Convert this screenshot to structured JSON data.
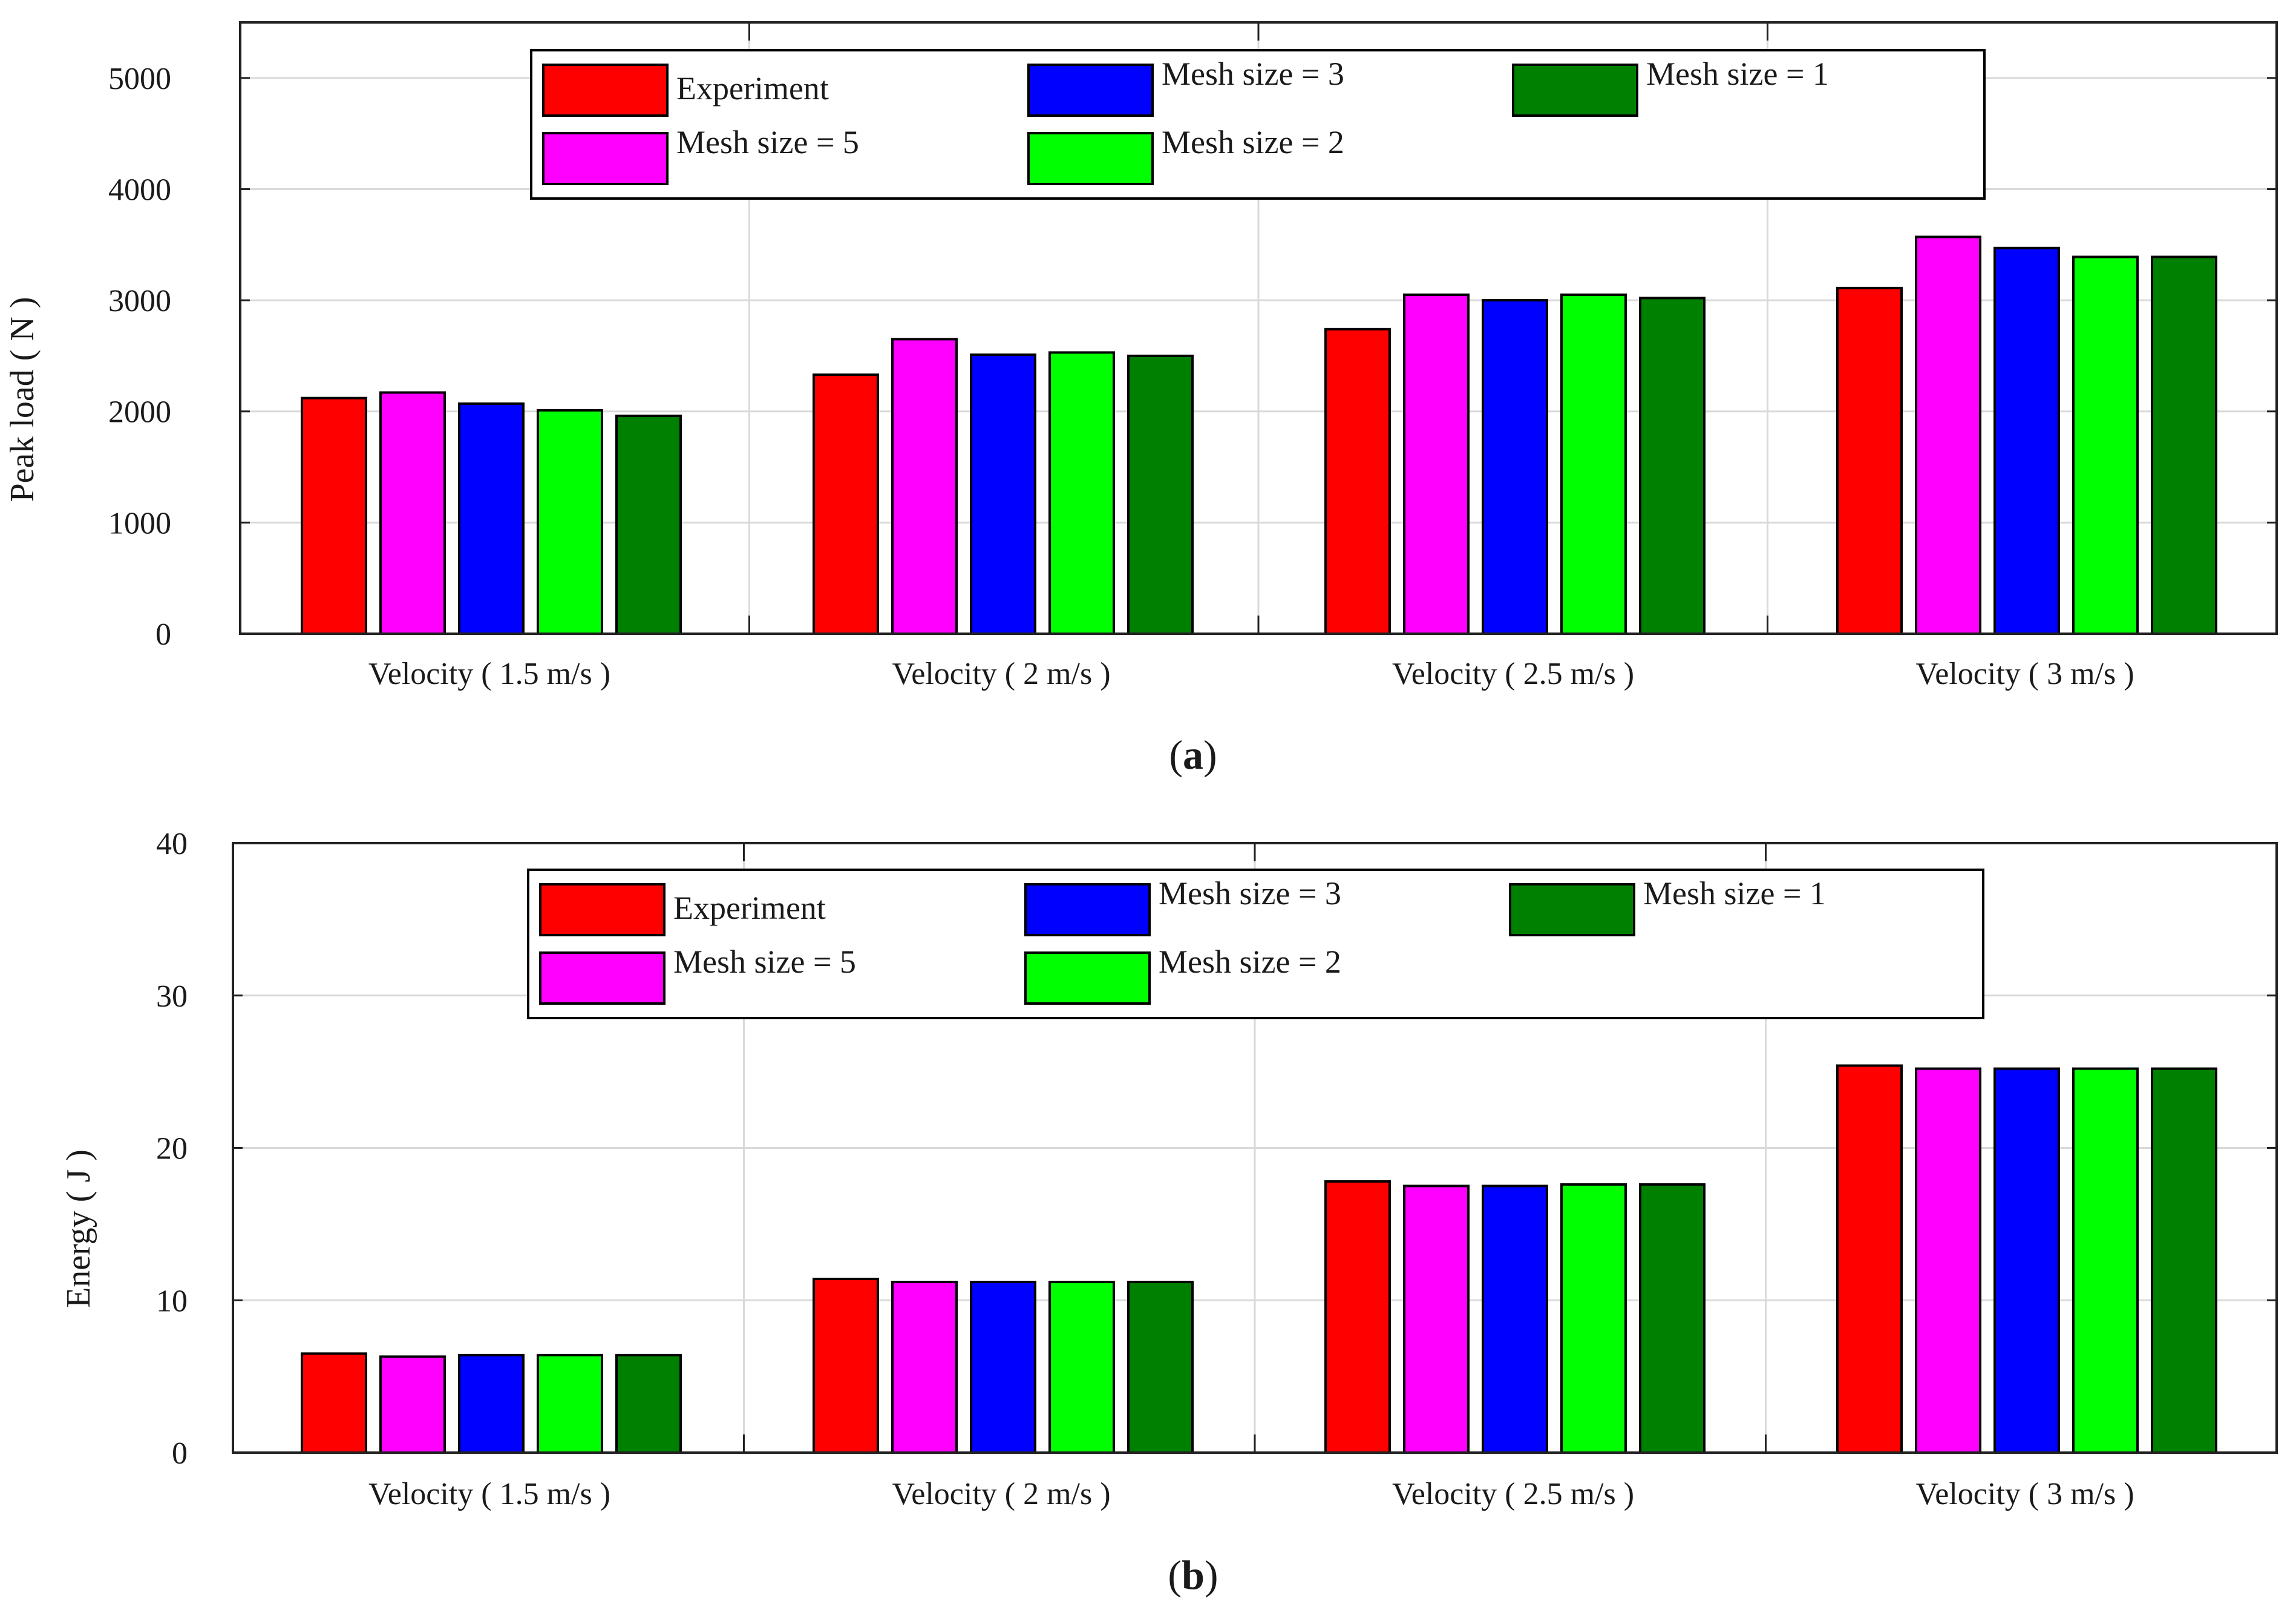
{
  "colors": {
    "Experiment": "#ff0000",
    "Mesh size = 5": "#ff00ff",
    "Mesh size = 3": "#0000ff",
    "Mesh size = 2": "#00ff00",
    "Mesh size = 1": "#008000"
  },
  "legend_order": [
    "Experiment",
    "Mesh size = 3",
    "Mesh size = 1",
    "Mesh size = 5",
    "Mesh size = 2"
  ],
  "chart_data": [
    {
      "type": "bar",
      "caption_letter": "a",
      "ylabel": "Peak load ( N )",
      "xlabel": "",
      "ylim": [
        0,
        5500
      ],
      "yticks": [
        "0",
        "1000",
        "2000",
        "3000",
        "4000",
        "5000"
      ],
      "ytick_values": [
        0,
        1000,
        2000,
        3000,
        4000,
        5000
      ],
      "grid": true,
      "legend": "top-center",
      "categories": [
        "Velocity ( 1.5 m/s )",
        "Velocity ( 2 m/s )",
        "Velocity ( 2.5 m/s )",
        "Velocity ( 3 m/s )"
      ],
      "series": [
        {
          "name": "Experiment",
          "values": [
            2120,
            2330,
            2740,
            3110
          ]
        },
        {
          "name": "Mesh size = 5",
          "values": [
            2170,
            2650,
            3050,
            3570
          ]
        },
        {
          "name": "Mesh size = 3",
          "values": [
            2070,
            2510,
            3000,
            3470
          ]
        },
        {
          "name": "Mesh size = 2",
          "values": [
            2010,
            2530,
            3050,
            3390
          ]
        },
        {
          "name": "Mesh size = 1",
          "values": [
            1960,
            2500,
            3020,
            3390
          ]
        }
      ]
    },
    {
      "type": "bar",
      "caption_letter": "b",
      "ylabel": "Energy ( J )",
      "xlabel": "",
      "ylim": [
        0,
        40
      ],
      "yticks": [
        "0",
        "10",
        "20",
        "30",
        "40"
      ],
      "ytick_values": [
        0,
        10,
        20,
        30,
        40
      ],
      "grid": true,
      "legend": "top-center",
      "categories": [
        "Velocity ( 1.5 m/s )",
        "Velocity ( 2 m/s )",
        "Velocity ( 2.5 m/s )",
        "Velocity ( 3 m/s )"
      ],
      "series": [
        {
          "name": "Experiment",
          "values": [
            6.5,
            11.4,
            17.8,
            25.4
          ]
        },
        {
          "name": "Mesh size = 5",
          "values": [
            6.3,
            11.2,
            17.5,
            25.2
          ]
        },
        {
          "name": "Mesh size = 3",
          "values": [
            6.4,
            11.2,
            17.5,
            25.2
          ]
        },
        {
          "name": "Mesh size = 2",
          "values": [
            6.4,
            11.2,
            17.6,
            25.2
          ]
        },
        {
          "name": "Mesh size = 1",
          "values": [
            6.4,
            11.2,
            17.6,
            25.2
          ]
        }
      ]
    }
  ]
}
